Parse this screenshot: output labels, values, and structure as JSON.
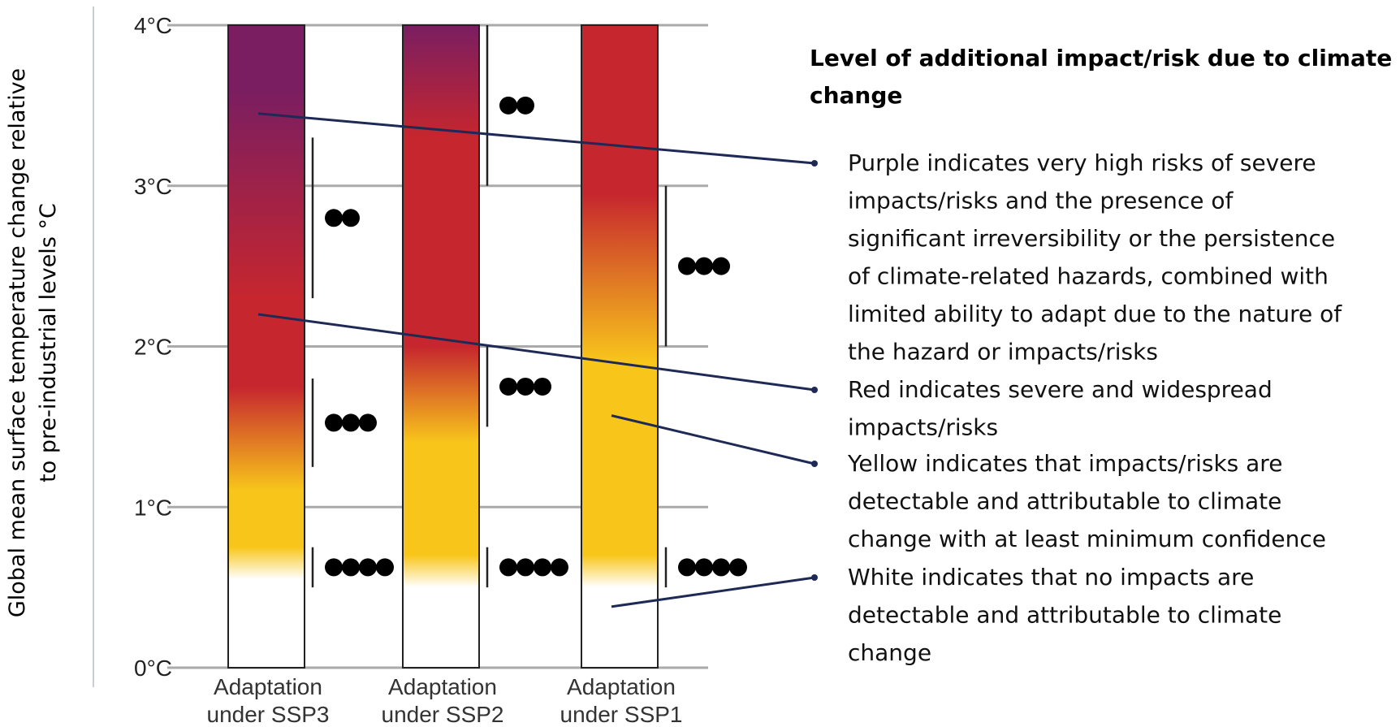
{
  "chart_data": {
    "type": "bar",
    "title": "",
    "ylabel_line1": "Global mean surface temperature change relative",
    "ylabel_line2": "to pre-industrial levels °C",
    "xlabel": "",
    "ylim": [
      0,
      4
    ],
    "yticks": [
      {
        "value": 0,
        "label": "0°C"
      },
      {
        "value": 1,
        "label": "1°C"
      },
      {
        "value": 2,
        "label": "2°C"
      },
      {
        "value": 3,
        "label": "3°C"
      },
      {
        "value": 4,
        "label": "4°C"
      }
    ],
    "grid": true,
    "categories": [
      {
        "line1": "Adaptation",
        "line2": "under SSP3"
      },
      {
        "line1": "Adaptation",
        "line2": "under SSP2"
      },
      {
        "line1": "Adaptation",
        "line2": "under SSP1"
      }
    ],
    "series": [
      {
        "category": "Adaptation under SSP3",
        "bar_range": [
          0,
          4
        ],
        "transitions": [
          {
            "from": "white",
            "to": "yellow",
            "range": [
              0.55,
              0.75
            ]
          },
          {
            "from": "yellow",
            "to": "red",
            "range": [
              1.1,
              1.75
            ]
          },
          {
            "from": "red",
            "to": "purple",
            "range": [
              2.3,
              3.6
            ]
          }
        ],
        "confidence": [
          {
            "range": [
              0.5,
              0.75
            ],
            "dots": 4
          },
          {
            "range": [
              1.25,
              1.8
            ],
            "dots": 3
          },
          {
            "range": [
              2.3,
              3.3
            ],
            "dots": 2
          }
        ]
      },
      {
        "category": "Adaptation under SSP2",
        "bar_range": [
          0,
          4
        ],
        "transitions": [
          {
            "from": "white",
            "to": "yellow",
            "range": [
              0.5,
              0.7
            ]
          },
          {
            "from": "yellow",
            "to": "red",
            "range": [
              1.4,
              2.0
            ]
          },
          {
            "from": "red",
            "to": "purple",
            "range": [
              3.3,
              4.0
            ]
          }
        ],
        "confidence": [
          {
            "range": [
              0.5,
              0.75
            ],
            "dots": 4
          },
          {
            "range": [
              1.5,
              2.0
            ],
            "dots": 3
          },
          {
            "range": [
              3.0,
              4.0
            ],
            "dots": 2
          }
        ]
      },
      {
        "category": "Adaptation under SSP1",
        "bar_range": [
          0,
          4
        ],
        "transitions": [
          {
            "from": "white",
            "to": "yellow",
            "range": [
              0.5,
              0.7
            ]
          },
          {
            "from": "yellow",
            "to": "red",
            "range": [
              1.9,
              2.95
            ]
          }
        ],
        "confidence": [
          {
            "range": [
              0.5,
              0.75
            ],
            "dots": 4
          },
          {
            "range": [
              2.0,
              3.0
            ],
            "dots": 3
          }
        ]
      }
    ],
    "colors": {
      "white": "#ffffff",
      "yellow": "#f8c61b",
      "red": "#c6262e",
      "purple": "#7a1e61",
      "grid": "#aaaaaa",
      "leader": "#1e2a55",
      "dot": "#000000"
    },
    "legend": {
      "title_lines": [
        "Level of additional impact/risk due to climate",
        "change"
      ],
      "entries": [
        {
          "color": "purple",
          "anchor": {
            "bar": 0,
            "value": 3.45
          },
          "lines": [
            "Purple indicates very high risks of severe",
            "impacts/risks and the presence of",
            "significant irreversibility or the persistence",
            "of climate-related hazards, combined with",
            "limited ability to adapt due to the nature of",
            "the hazard or impacts/risks"
          ]
        },
        {
          "color": "red",
          "anchor": {
            "bar": 0,
            "value": 2.2
          },
          "lines": [
            "Red indicates severe and widespread",
            "impacts/risks"
          ]
        },
        {
          "color": "yellow",
          "anchor": {
            "bar": 2,
            "value": 1.57
          },
          "lines": [
            "Yellow indicates that impacts/risks are",
            "detectable and attributable to climate",
            "change with at least minimum confidence"
          ]
        },
        {
          "color": "white",
          "anchor": {
            "bar": 2,
            "value": 0.38
          },
          "lines": [
            "White indicates that no impacts are",
            "detectable and attributable to climate",
            "change"
          ]
        }
      ]
    }
  }
}
